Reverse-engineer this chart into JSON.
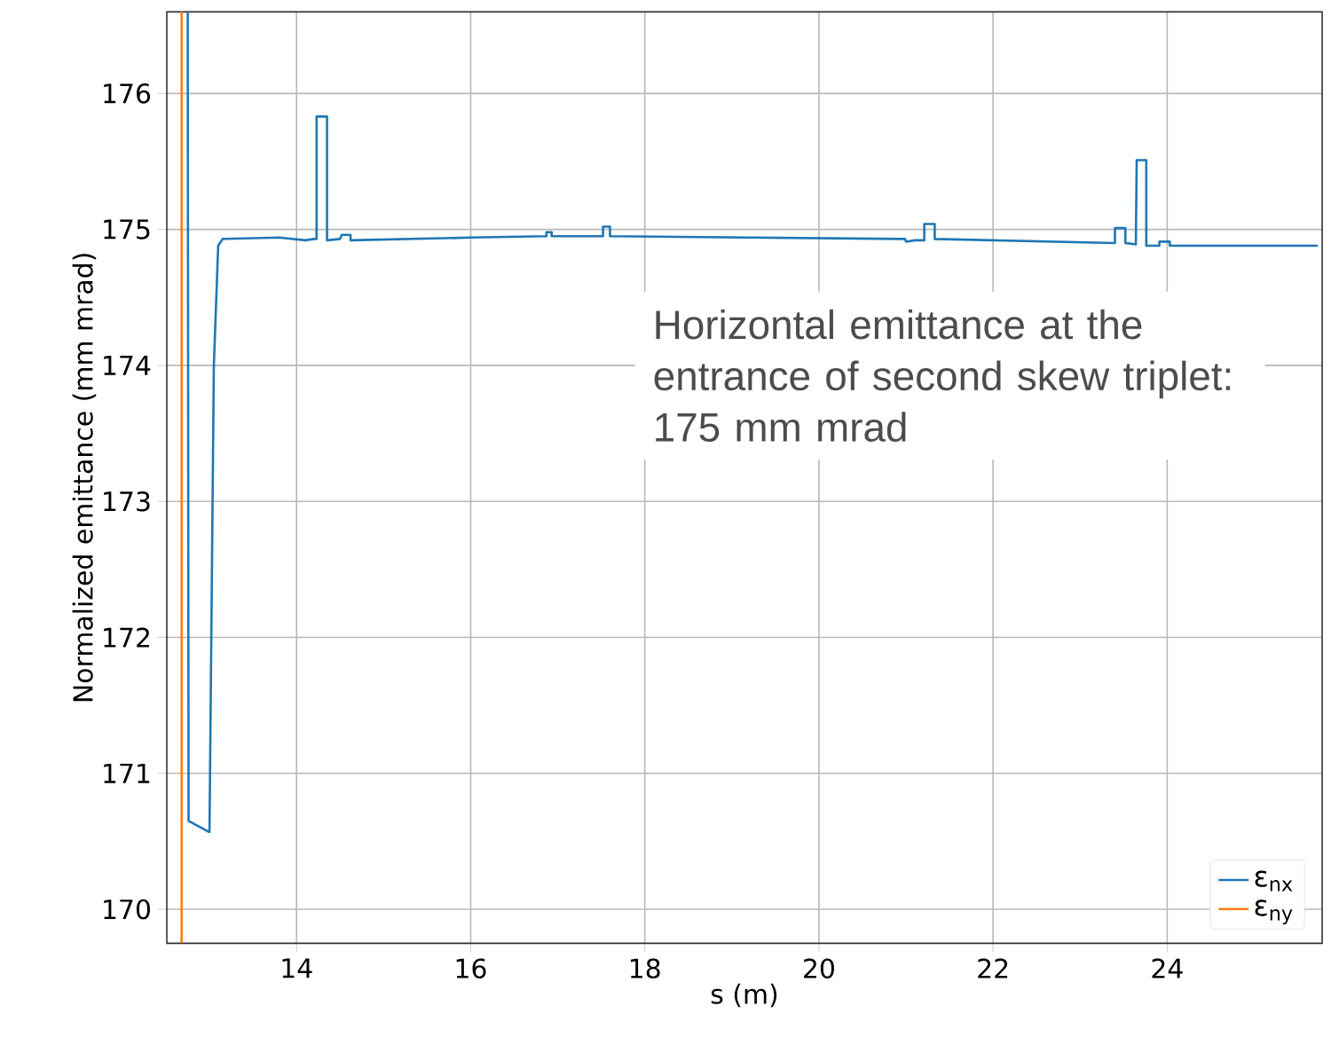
{
  "chart_data": {
    "type": "line",
    "xlabel": "s (m)",
    "ylabel": "Normalized emittance (mm mrad)",
    "xlim": [
      12.51,
      25.78
    ],
    "ylim": [
      169.75,
      176.6
    ],
    "xticks": [
      14,
      16,
      18,
      20,
      22,
      24
    ],
    "yticks": [
      170,
      171,
      172,
      173,
      174,
      175,
      176
    ],
    "grid": true,
    "legend": "bottom right",
    "line_style": "solid",
    "marker": "none",
    "series": [
      {
        "name": "ε$_{nx}$",
        "color": "#1f77b4",
        "x": [
          12.75,
          12.76,
          12.99,
          13.0,
          13.05,
          13.1,
          13.15,
          13.8,
          14.1,
          14.2,
          14.23,
          14.23,
          14.35,
          14.35,
          14.5,
          14.52,
          14.62,
          14.62,
          16.0,
          16.87,
          16.87,
          16.93,
          16.93,
          17.52,
          17.52,
          17.6,
          17.6,
          20.99,
          21.0,
          21.1,
          21.21,
          21.21,
          21.33,
          21.33,
          23.4,
          23.4,
          23.52,
          23.52,
          23.64,
          23.65,
          23.76,
          23.76,
          23.91,
          23.91,
          24.03,
          24.03,
          25.73
        ],
        "values": [
          176.6,
          170.65,
          170.57,
          170.57,
          174.0,
          174.88,
          174.93,
          174.94,
          174.92,
          174.93,
          174.93,
          175.83,
          175.83,
          174.92,
          174.93,
          174.96,
          174.96,
          174.92,
          174.94,
          174.95,
          174.98,
          174.98,
          174.95,
          174.95,
          175.02,
          175.02,
          174.95,
          174.93,
          174.91,
          174.92,
          174.92,
          175.04,
          175.04,
          174.93,
          174.9,
          175.01,
          175.01,
          174.9,
          174.89,
          175.51,
          175.51,
          174.88,
          174.88,
          174.91,
          174.91,
          174.88,
          174.88
        ]
      },
      {
        "name": "ε$_{ny}$",
        "color": "#ff7f0e",
        "x": [
          12.68,
          12.68
        ],
        "values": [
          169.75,
          176.6
        ]
      }
    ],
    "annotations": [
      {
        "text": "Horizontal emittance at the entrance of second skew triplet: 175 mm mrad"
      }
    ]
  }
}
